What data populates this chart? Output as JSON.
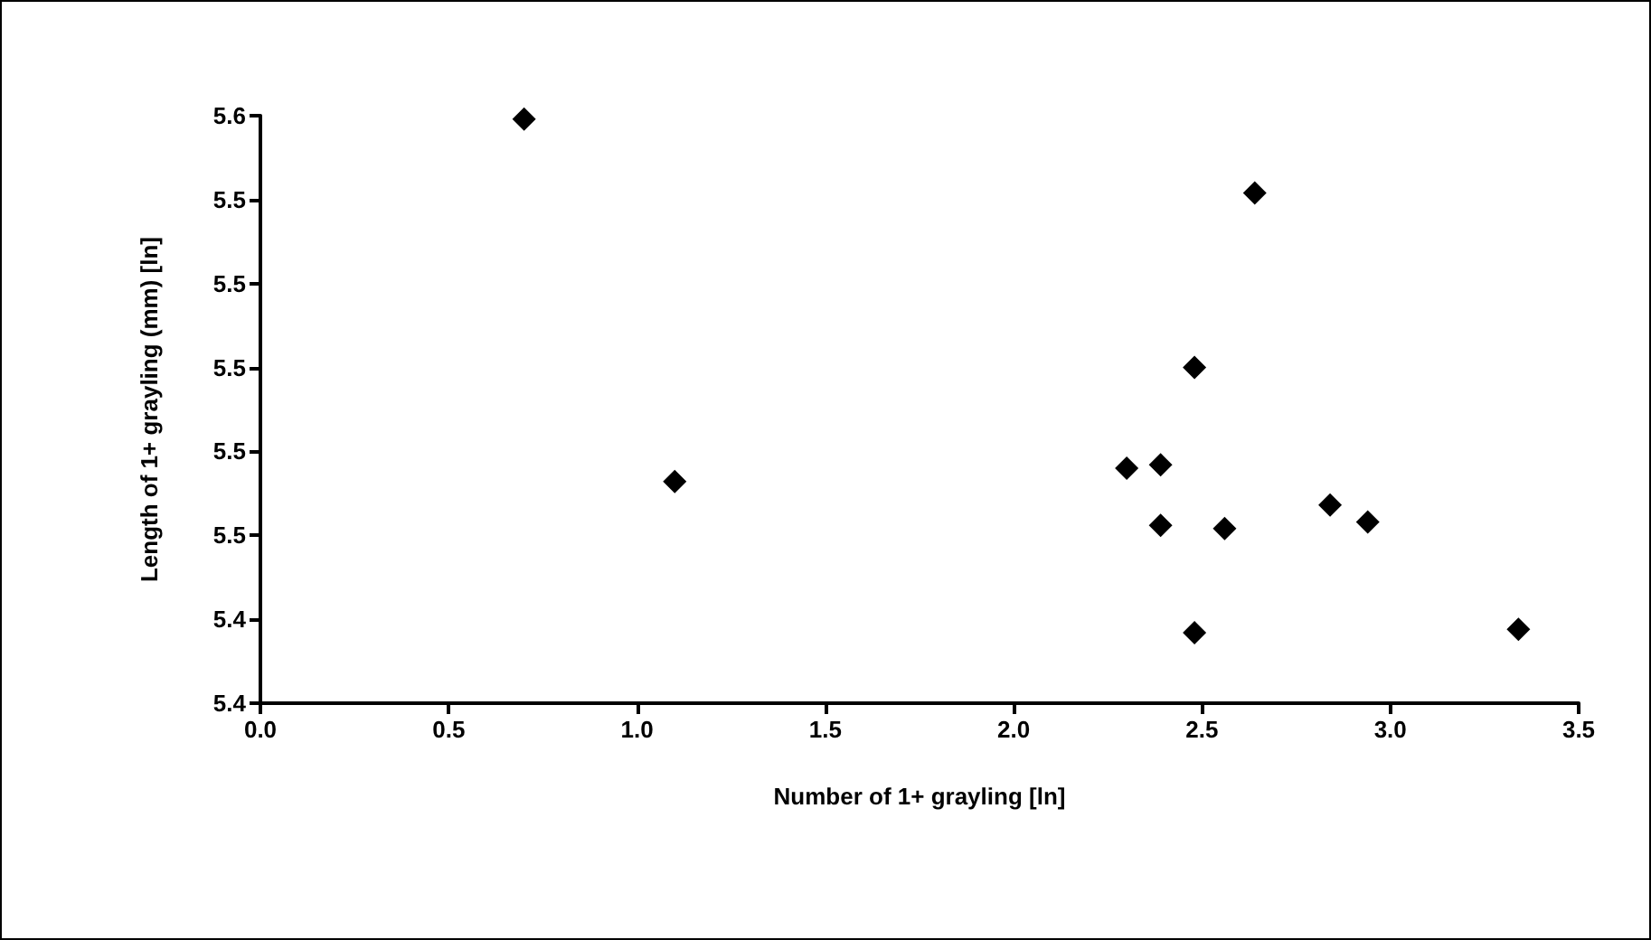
{
  "chart_data": {
    "type": "scatter",
    "xlabel": "Number of 1+ grayling [ln]",
    "ylabel": "Length of 1+ grayling (mm) [ln]",
    "marker": "diamond",
    "grid": false,
    "x": [
      0.7,
      1.1,
      2.64,
      2.48,
      2.3,
      2.39,
      2.39,
      2.56,
      2.84,
      2.94,
      2.48,
      3.34
    ],
    "series": [
      {
        "color": "#000000",
        "values": [
          5.574,
          5.466,
          5.552,
          5.5,
          5.47,
          5.471,
          5.453,
          5.452,
          5.459,
          5.454,
          5.421,
          5.422
        ]
      }
    ],
    "xlim": [
      0,
      3.5
    ],
    "xticks": [
      {
        "value": 0,
        "label": "0.0"
      },
      0.5,
      {
        "value": 1,
        "label": "1.0"
      },
      1.5,
      {
        "value": 2,
        "label": "2.0"
      },
      2.5,
      {
        "value": 3,
        "label": "3.0"
      },
      3.5
    ],
    "ylim": [
      5.4,
      5.575
    ],
    "yticks": [
      {
        "value": 5.4,
        "label": "5.4"
      },
      {
        "value": 5.425,
        "label": "5.4"
      },
      {
        "value": 5.45,
        "label": "5.5"
      },
      {
        "value": 5.475,
        "label": "5.5"
      },
      {
        "value": 5.5,
        "label": "5.5"
      },
      {
        "value": 5.525,
        "label": "5.5"
      },
      {
        "value": 5.55,
        "label": "5.5"
      },
      {
        "value": 5.575,
        "label": "5.6"
      }
    ]
  }
}
